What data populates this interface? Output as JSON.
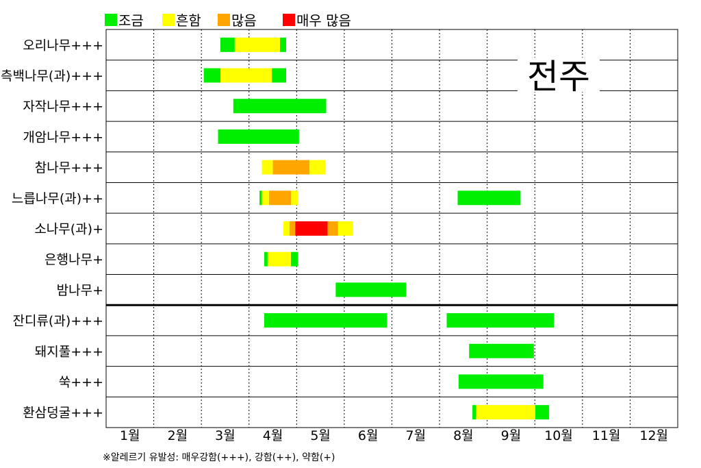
{
  "chart_data": {
    "type": "gantt",
    "title": "",
    "city_label": "전주",
    "footnote": "※알레르기 유발성: 매우강함(+++), 강함(++), 약함(+)",
    "legend": [
      {
        "key": "low",
        "label": "조금",
        "color": "#00ee00"
      },
      {
        "key": "common",
        "label": "흔함",
        "color": "#ffff00"
      },
      {
        "key": "many",
        "label": "많음",
        "color": "#ffa500"
      },
      {
        "key": "very_many",
        "label": "매우 많음",
        "color": "#ff0000"
      }
    ],
    "months": [
      "1월",
      "2월",
      "3월",
      "4월",
      "5월",
      "6월",
      "7월",
      "8월",
      "9월",
      "10월",
      "11월",
      "12월"
    ],
    "x_unit": "month position (1.0 = start of January, 13.0 = end of December)",
    "group_separator_after_row": 9,
    "rows": [
      {
        "label": "오리나무+++",
        "segments": [
          {
            "level": "low",
            "start": 3.4,
            "end": 3.7
          },
          {
            "level": "common",
            "start": 3.7,
            "end": 4.65
          },
          {
            "level": "low",
            "start": 4.65,
            "end": 4.78
          }
        ]
      },
      {
        "label": "측백나무(과)+++",
        "segments": [
          {
            "level": "low",
            "start": 3.05,
            "end": 3.4
          },
          {
            "level": "common",
            "start": 3.4,
            "end": 4.48
          },
          {
            "level": "low",
            "start": 4.48,
            "end": 4.78
          }
        ]
      },
      {
        "label": "자작나무+++",
        "segments": [
          {
            "level": "low",
            "start": 3.67,
            "end": 5.62
          }
        ]
      },
      {
        "label": "개암나무+++",
        "segments": [
          {
            "level": "low",
            "start": 3.35,
            "end": 5.05
          }
        ]
      },
      {
        "label": "참나무+++",
        "segments": [
          {
            "level": "common",
            "start": 4.27,
            "end": 4.5
          },
          {
            "level": "many",
            "start": 4.5,
            "end": 5.27
          },
          {
            "level": "common",
            "start": 5.27,
            "end": 5.6
          }
        ]
      },
      {
        "label": "느릅나무(과)++",
        "segments": [
          {
            "level": "low",
            "start": 4.22,
            "end": 4.27
          },
          {
            "level": "common",
            "start": 4.27,
            "end": 4.42
          },
          {
            "level": "many",
            "start": 4.42,
            "end": 4.88
          },
          {
            "level": "common",
            "start": 4.88,
            "end": 5.03
          },
          {
            "level": "low",
            "start": 8.38,
            "end": 9.7
          }
        ]
      },
      {
        "label": "소나무(과)+",
        "segments": [
          {
            "level": "common",
            "start": 4.72,
            "end": 4.85
          },
          {
            "level": "many",
            "start": 4.85,
            "end": 4.97
          },
          {
            "level": "very_many",
            "start": 4.97,
            "end": 5.65
          },
          {
            "level": "many",
            "start": 5.65,
            "end": 5.87
          },
          {
            "level": "common",
            "start": 5.87,
            "end": 6.18
          }
        ]
      },
      {
        "label": "은행나무+",
        "segments": [
          {
            "level": "low",
            "start": 4.32,
            "end": 4.39
          },
          {
            "level": "common",
            "start": 4.39,
            "end": 4.88
          },
          {
            "level": "low",
            "start": 4.88,
            "end": 5.03
          }
        ]
      },
      {
        "label": "밤나무+",
        "segments": [
          {
            "level": "low",
            "start": 5.82,
            "end": 7.3
          }
        ]
      },
      {
        "label": "잔디류(과)+++",
        "segments": [
          {
            "level": "low",
            "start": 4.32,
            "end": 6.9
          },
          {
            "level": "low",
            "start": 8.15,
            "end": 10.4
          }
        ]
      },
      {
        "label": "돼지풀+++",
        "segments": [
          {
            "level": "low",
            "start": 8.62,
            "end": 9.98
          }
        ]
      },
      {
        "label": "쑥+++",
        "segments": [
          {
            "level": "low",
            "start": 8.4,
            "end": 10.18
          }
        ]
      },
      {
        "label": "환삼덩굴+++",
        "segments": [
          {
            "level": "low",
            "start": 8.69,
            "end": 8.77
          },
          {
            "level": "common",
            "start": 8.77,
            "end": 10.01
          },
          {
            "level": "low",
            "start": 10.01,
            "end": 10.3
          }
        ]
      }
    ]
  }
}
